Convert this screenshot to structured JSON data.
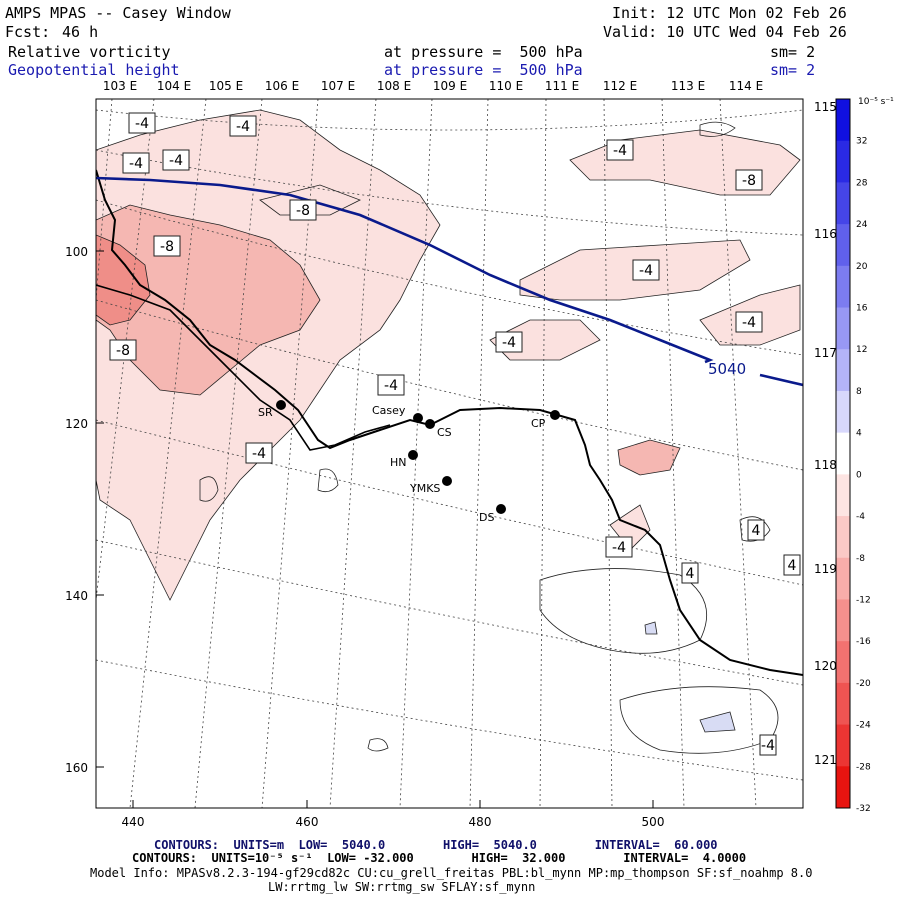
{
  "header": {
    "title": "AMPS MPAS -- Casey Window",
    "init": "Init: 12 UTC Mon 02 Feb 26",
    "fcst_label": "Fcst:",
    "fcst_value": "46 h",
    "valid": "Valid: 10 UTC Wed 04 Feb 26",
    "field1_name": "Relative vorticity",
    "field1_level": "at pressure =  500 hPa",
    "field1_sm": "sm= 2",
    "field2_name": "Geopotential height",
    "field2_level": "at pressure =  500 hPa",
    "field2_sm": "sm= 2"
  },
  "map": {
    "x_axis_ticks": [
      "440",
      "460",
      "480",
      "500"
    ],
    "y_axis_ticks": [
      "100",
      "120",
      "140",
      "160"
    ],
    "lon_labels": [
      "103 E",
      "104 E",
      "105 E",
      "106 E",
      "107 E",
      "108 E",
      "109 E",
      "110 E",
      "111 E",
      "112 E",
      "113 E",
      "114 E"
    ],
    "lat_labels": [
      "115 E",
      "116 E",
      "117 E",
      "118 E",
      "119 E",
      "120 E",
      "121 E"
    ],
    "height_contour_label": "5040",
    "vorticity_labels": [
      "-4",
      "-4",
      "-4",
      "-4",
      "-8",
      "-8",
      "-8",
      "-4",
      "-4",
      "-8",
      "-4",
      "-4",
      "-4",
      "-4",
      "-4",
      "-4",
      "4",
      "4",
      "4",
      "4"
    ],
    "stations": [
      "Casey",
      "CS",
      "SR",
      "HN",
      "YMKS",
      "DS",
      "CP"
    ],
    "colors": {
      "geopotential": "#0a1a8c",
      "light_pink": "#fbe1df",
      "mid_pink": "#f5b7b2",
      "dark_pink": "#ef8e88",
      "light_blue": "#d8dcf4"
    }
  },
  "colorbar": {
    "unit": "10⁻⁵ s⁻¹",
    "labels": [
      "32",
      "28",
      "24",
      "20",
      "16",
      "12",
      "8",
      "4",
      "0",
      "-4",
      "-8",
      "-12",
      "-16",
      "-20",
      "-24",
      "-28",
      "-32"
    ],
    "colors": [
      "#1010e0",
      "#2a2ae4",
      "#4545e8",
      "#6060ec",
      "#7c7cf0",
      "#9898f4",
      "#b4b4f8",
      "#d8d8fc",
      "#ffffff",
      "#fde4e2",
      "#fbc9c6",
      "#f8adaa",
      "#f5908d",
      "#f27270",
      "#ef5452",
      "#ec3533",
      "#e81410"
    ]
  },
  "footer": {
    "contour1": "CONTOURS:  UNITS=m  LOW=  5040.0        HIGH=  5040.0        INTERVAL=  60.000",
    "contour2": "CONTOURS:  UNITS=10⁻⁵ s⁻¹  LOW= -32.000        HIGH=  32.000        INTERVAL=  4.0000",
    "model_info": "Model Info: MPASv8.2.3-194-gf29cd82c CU:cu_grell_freitas PBL:bl_mynn MP:mp_thompson SF:sf_noahmp 8.0",
    "model_info2": "LW:rrtmg_lw SW:rrtmg_sw SFLAY:sf_mynn"
  }
}
